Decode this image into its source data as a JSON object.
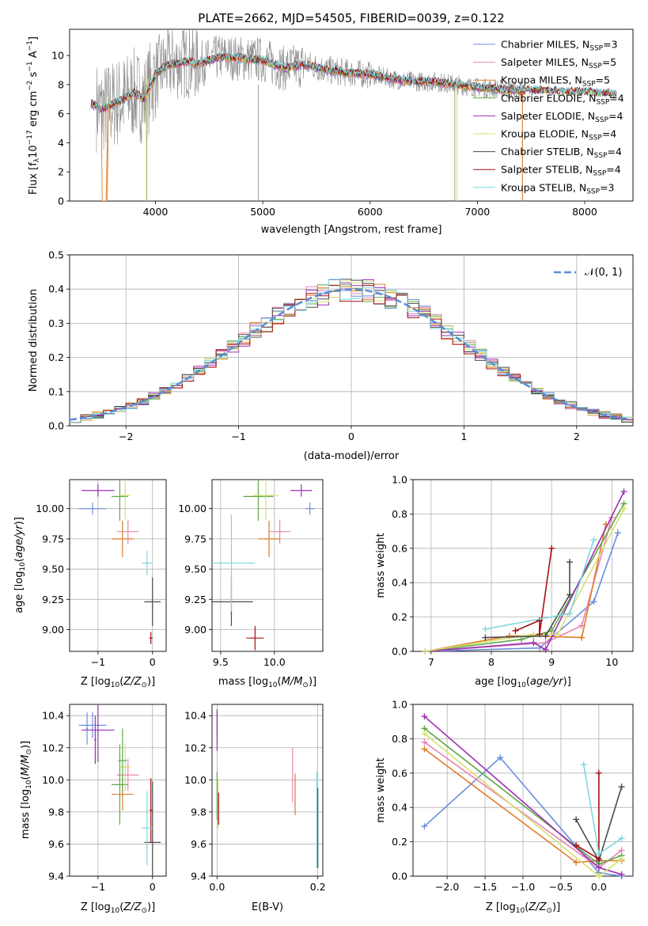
{
  "figure": {
    "title": "PLATE=2662, MJD=54505, FIBERID=0039, z=0.122"
  },
  "colors": {
    "chabrier_miles": "#6a8fdc",
    "salpeter_miles": "#e985b6",
    "kroupa_miles": "#e07c26",
    "chabrier_elodie": "#5fa84a",
    "salpeter_elodie": "#9b2fb3",
    "kroupa_elodie": "#d6e06c",
    "chabrier_stelib": "#4a4a4a",
    "salpeter_stelib": "#a61010",
    "kroupa_stelib": "#7fd8dc",
    "grid": "#b0b0b0",
    "normal_curve": "#5b8bd6"
  },
  "chart_data": [
    {
      "id": "spectrum",
      "type": "line",
      "xlabel": "wavelength [Angstrom, rest frame]",
      "ylabel": "Flux [f",
      "xlim": [
        3200,
        8450
      ],
      "ylim": [
        0,
        11.8
      ],
      "xticks": [
        4000,
        5000,
        6000,
        7000,
        8000
      ],
      "yticks": [
        0,
        2,
        4,
        6,
        8,
        10
      ],
      "legend": [
        {
          "label": "Chabrier MILES, N",
          "nssp": "3",
          "color": "chabrier_miles"
        },
        {
          "label": "Salpeter MILES, N",
          "nssp": "5",
          "color": "salpeter_miles"
        },
        {
          "label": "Kroupa MILES, N",
          "nssp": "5",
          "color": "kroupa_miles"
        },
        {
          "label": "Chabrier ELODIE, N",
          "nssp": "4",
          "color": "chabrier_elodie"
        },
        {
          "label": "Salpeter ELODIE, N",
          "nssp": "4",
          "color": "salpeter_elodie"
        },
        {
          "label": "Kroupa ELODIE, N",
          "nssp": "4",
          "color": "kroupa_elodie"
        },
        {
          "label": "Chabrier STELIB, N",
          "nssp": "4",
          "color": "chabrier_stelib"
        },
        {
          "label": "Salpeter STELIB, N",
          "nssp": "4",
          "color": "salpeter_stelib"
        },
        {
          "label": "Kroupa STELIB, N",
          "nssp": "3",
          "color": "kroupa_stelib"
        }
      ],
      "continuum": [
        [
          3400,
          6.7
        ],
        [
          3500,
          6.3
        ],
        [
          3650,
          6.8
        ],
        [
          3800,
          7.4
        ],
        [
          3900,
          7.0
        ],
        [
          4000,
          8.7
        ],
        [
          4100,
          9.3
        ],
        [
          4300,
          9.6
        ],
        [
          4400,
          9.4
        ],
        [
          4600,
          9.9
        ],
        [
          4800,
          9.8
        ],
        [
          5000,
          9.7
        ],
        [
          5200,
          9.1
        ],
        [
          5400,
          9.4
        ],
        [
          5600,
          9.0
        ],
        [
          5800,
          8.8
        ],
        [
          6000,
          8.7
        ],
        [
          6200,
          8.4
        ],
        [
          6400,
          8.2
        ],
        [
          6600,
          8.2
        ],
        [
          6800,
          8.0
        ],
        [
          7000,
          7.8
        ],
        [
          7200,
          7.7
        ],
        [
          7400,
          7.6
        ],
        [
          7600,
          7.6
        ],
        [
          7800,
          7.5
        ],
        [
          8000,
          7.5
        ],
        [
          8200,
          7.4
        ],
        [
          8300,
          7.3
        ]
      ]
    },
    {
      "id": "residuals",
      "type": "line",
      "xlabel": "(data-model)/error",
      "ylabel": "Normed distribution",
      "xlim": [
        -2.5,
        2.5
      ],
      "ylim": [
        0,
        0.5
      ],
      "xticks": [
        -2,
        -1,
        0,
        1,
        2
      ],
      "yticks": [
        0.0,
        0.1,
        0.2,
        0.3,
        0.4,
        0.5
      ],
      "legend": "𝒩(0, 1)",
      "bin_width": 0.1
    },
    {
      "id": "z_age",
      "type": "scatter",
      "xlabel": "Z [log",
      "ylabel": "age  [log",
      "xlim": [
        -1.52,
        0.25
      ],
      "ylim": [
        8.82,
        10.24
      ],
      "xticks": [
        -1,
        0
      ],
      "yticks": [
        9.0,
        9.25,
        9.5,
        9.75,
        10.0
      ],
      "points": [
        {
          "s": "chabrier_miles",
          "x": -1.1,
          "xe": 0.25,
          "y": 10.0,
          "ye": 0.05
        },
        {
          "s": "salpeter_miles",
          "x": -0.45,
          "xe": 0.2,
          "y": 9.81,
          "ye": 0.1
        },
        {
          "s": "kroupa_miles",
          "x": -0.55,
          "xe": 0.2,
          "y": 9.75,
          "ye": 0.15
        },
        {
          "s": "chabrier_elodie",
          "x": -0.6,
          "xe": 0.15,
          "y": 10.1,
          "ye": 0.2
        },
        {
          "s": "salpeter_elodie",
          "x": -1.0,
          "xe": 0.3,
          "y": 10.15,
          "ye": 0.05
        },
        {
          "s": "kroupa_elodie",
          "x": -0.5,
          "xe": 0.1,
          "y": 10.11,
          "ye": 0.2
        },
        {
          "s": "chabrier_stelib",
          "x": 0.0,
          "xe": 0.15,
          "y": 9.23,
          "ye": 0.2
        },
        {
          "s": "salpeter_stelib",
          "x": -0.03,
          "xe": 0.03,
          "y": 8.93,
          "ye": 0.05
        },
        {
          "s": "kroupa_stelib",
          "x": -0.1,
          "xe": 0.1,
          "y": 9.55,
          "ye": 0.1
        }
      ]
    },
    {
      "id": "mass_age",
      "type": "scatter",
      "xlabel": "mass [log",
      "ylabel": "",
      "xlim": [
        9.42,
        10.45
      ],
      "ylim": [
        8.82,
        10.24
      ],
      "xticks": [
        9.5,
        10.0
      ],
      "yticks": [
        9.0,
        9.25,
        9.5,
        9.75,
        10.0
      ],
      "points": [
        {
          "s": "chabrier_miles",
          "x": 10.33,
          "xe": 0.04,
          "y": 10.0,
          "ye": 0.05
        },
        {
          "s": "salpeter_miles",
          "x": 10.05,
          "xe": 0.1,
          "y": 9.81,
          "ye": 0.1
        },
        {
          "s": "kroupa_miles",
          "x": 9.95,
          "xe": 0.1,
          "y": 9.75,
          "ye": 0.15
        },
        {
          "s": "chabrier_elodie",
          "x": 9.85,
          "xe": 0.14,
          "y": 10.1,
          "ye": 0.2
        },
        {
          "s": "salpeter_elodie",
          "x": 10.25,
          "xe": 0.1,
          "y": 10.15,
          "ye": 0.05
        },
        {
          "s": "kroupa_elodie",
          "x": 9.92,
          "xe": 0.12,
          "y": 10.11,
          "ye": 0.2
        },
        {
          "s": "chabrier_stelib",
          "x": 9.6,
          "xe": 0.2,
          "y": 9.23,
          "ye": 0.2
        },
        {
          "s": "salpeter_stelib",
          "x": 9.82,
          "xe": 0.08,
          "y": 8.93,
          "ye": 0.1
        },
        {
          "s": "kroupa_stelib",
          "x": 9.6,
          "xe": 0.22,
          "y": 9.55,
          "ye": 0.4
        }
      ]
    },
    {
      "id": "age_weight",
      "type": "line",
      "xlabel": "age  [log",
      "ylabel": "mass weight",
      "xlim": [
        6.7,
        10.35
      ],
      "ylim": [
        0,
        1.0
      ],
      "xticks": [
        7,
        8,
        9,
        10
      ],
      "yticks": [
        0.0,
        0.2,
        0.4,
        0.6,
        0.8,
        1.0
      ],
      "series": [
        {
          "s": "chabrier_miles",
          "x": [
            6.9,
            8.8,
            9.7,
            10.1
          ],
          "y": [
            0.0,
            0.02,
            0.29,
            0.69
          ]
        },
        {
          "s": "salpeter_miles",
          "x": [
            6.9,
            8.9,
            9.5,
            10.0
          ],
          "y": [
            0.0,
            0.05,
            0.15,
            0.78
          ]
        },
        {
          "s": "kroupa_miles",
          "x": [
            6.9,
            8.3,
            8.7,
            9.5,
            9.9
          ],
          "y": [
            0.0,
            0.09,
            0.09,
            0.08,
            0.74
          ]
        },
        {
          "s": "chabrier_elodie",
          "x": [
            6.9,
            8.5,
            9.0,
            10.2
          ],
          "y": [
            0.0,
            0.07,
            0.12,
            0.86
          ]
        },
        {
          "s": "salpeter_elodie",
          "x": [
            6.9,
            8.7,
            8.9,
            10.2
          ],
          "y": [
            0.0,
            0.05,
            0.01,
            0.93
          ]
        },
        {
          "s": "kroupa_elodie",
          "x": [
            6.9,
            8.7,
            9.1,
            10.2
          ],
          "y": [
            0.0,
            0.1,
            0.1,
            0.83
          ]
        },
        {
          "s": "chabrier_stelib",
          "x": [
            7.9,
            8.9,
            9.3,
            9.3
          ],
          "y": [
            0.08,
            0.09,
            0.33,
            0.52
          ]
        },
        {
          "s": "salpeter_stelib",
          "x": [
            8.4,
            8.8,
            8.8,
            9.0
          ],
          "y": [
            0.12,
            0.18,
            0.1,
            0.6
          ]
        },
        {
          "s": "kroupa_stelib",
          "x": [
            7.9,
            9.3,
            9.7
          ],
          "y": [
            0.13,
            0.22,
            0.65
          ]
        }
      ]
    },
    {
      "id": "z_mass",
      "type": "scatter",
      "xlabel": "Z [log",
      "ylabel": "mass [log",
      "xlim": [
        -1.52,
        0.25
      ],
      "ylim": [
        9.4,
        10.47
      ],
      "xticks": [
        -1,
        0
      ],
      "yticks": [
        9.4,
        9.6,
        9.8,
        10.0,
        10.2,
        10.4
      ],
      "points": [
        {
          "s": "chabrier_miles",
          "x": -1.1,
          "xe": 0.25,
          "y": 10.34,
          "ye": 0.08
        },
        {
          "s": "salpeter_miles",
          "x": -0.45,
          "xe": 0.2,
          "y": 10.03,
          "ye": 0.1
        },
        {
          "s": "kroupa_miles",
          "x": -0.55,
          "xe": 0.2,
          "y": 9.91,
          "ye": 0.1
        },
        {
          "s": "chabrier_elodie",
          "x": -0.6,
          "xe": 0.15,
          "y": 9.97,
          "ye": 0.25
        },
        {
          "s": "salpeter_elodie",
          "x": -1.0,
          "xe": 0.3,
          "y": 10.31,
          "ye": 0.2
        },
        {
          "s": "kroupa_elodie",
          "x": -0.5,
          "xe": 0.1,
          "y": 10.08,
          "ye": 0.15
        },
        {
          "s": "chabrier_stelib",
          "x": 0.0,
          "xe": 0.15,
          "y": 9.61,
          "ye": 0.38
        },
        {
          "s": "salpeter_stelib",
          "x": -0.03,
          "xe": 0.03,
          "y": 9.81,
          "ye": 0.2
        },
        {
          "s": "kroupa_stelib",
          "x": -0.1,
          "xe": 0.1,
          "y": 9.7,
          "ye": 0.23
        },
        {
          "s": "chabrier_miles",
          "x": -1.2,
          "xe": 0.02,
          "y": 10.32,
          "ye": 0.1
        },
        {
          "s": "chabrier_elodie",
          "x": -0.55,
          "xe": 0.08,
          "y": 10.12,
          "ye": 0.2
        },
        {
          "s": "salpeter_elodie",
          "x": -1.05,
          "xe": 0.02,
          "y": 10.25,
          "ye": 0.15
        }
      ]
    },
    {
      "id": "ebv_mass",
      "type": "scatter",
      "xlabel": "E(B-V)",
      "ylabel": "",
      "xlim": [
        -0.01,
        0.21
      ],
      "ylim": [
        9.4,
        10.47
      ],
      "xticks": [
        0.0,
        0.2
      ],
      "yticks": [
        9.4,
        9.6,
        9.8,
        10.0,
        10.2,
        10.4
      ],
      "points": [
        {
          "s": "chabrier_miles",
          "x": 0.0,
          "y": 10.34,
          "ye": 0.08
        },
        {
          "s": "salpeter_miles",
          "x": 0.15,
          "y": 10.03,
          "ye": 0.17
        },
        {
          "s": "kroupa_miles",
          "x": 0.155,
          "y": 9.91,
          "ye": 0.13
        },
        {
          "s": "chabrier_elodie",
          "x": 0.0,
          "y": 9.9,
          "ye": 0.15
        },
        {
          "s": "salpeter_elodie",
          "x": 0.0,
          "y": 10.31,
          "ye": 0.13
        },
        {
          "s": "kroupa_elodie",
          "x": 0.002,
          "y": 9.85,
          "ye": 0.15
        },
        {
          "s": "chabrier_stelib",
          "x": 0.2,
          "y": 9.7,
          "ye": 0.25
        },
        {
          "s": "salpeter_stelib",
          "x": 0.003,
          "y": 9.82,
          "ye": 0.1
        },
        {
          "s": "kroupa_stelib",
          "x": 0.198,
          "y": 9.75,
          "ye": 0.3
        }
      ]
    },
    {
      "id": "z_weight",
      "type": "line",
      "xlabel": "Z [log",
      "ylabel": "mass weight",
      "xlim": [
        -2.45,
        0.45
      ],
      "ylim": [
        0,
        1.0
      ],
      "xticks": [
        -2.0,
        -1.5,
        -1.0,
        -0.5,
        0.0
      ],
      "yticks": [
        0.0,
        0.2,
        0.4,
        0.6,
        0.8,
        1.0
      ],
      "series": [
        {
          "s": "chabrier_miles",
          "x": [
            -2.3,
            -1.3,
            0.0,
            0.3
          ],
          "y": [
            0.29,
            0.69,
            0.02,
            0.0
          ]
        },
        {
          "s": "salpeter_miles",
          "x": [
            -2.3,
            0.0,
            0.3
          ],
          "y": [
            0.78,
            0.05,
            0.15
          ]
        },
        {
          "s": "kroupa_miles",
          "x": [
            -2.3,
            -0.3,
            0.0,
            0.3
          ],
          "y": [
            0.74,
            0.08,
            0.09,
            0.09
          ]
        },
        {
          "s": "chabrier_elodie",
          "x": [
            -2.3,
            0.0,
            0.3
          ],
          "y": [
            0.86,
            0.07,
            0.12
          ]
        },
        {
          "s": "salpeter_elodie",
          "x": [
            -2.3,
            0.0,
            0.3
          ],
          "y": [
            0.93,
            0.05,
            0.01
          ]
        },
        {
          "s": "kroupa_elodie",
          "x": [
            -2.3,
            0.0,
            0.3
          ],
          "y": [
            0.83,
            0.0,
            0.1
          ]
        },
        {
          "s": "chabrier_stelib",
          "x": [
            -0.3,
            0.0,
            0.3
          ],
          "y": [
            0.33,
            0.09,
            0.52
          ]
        },
        {
          "s": "salpeter_stelib",
          "x": [
            -0.3,
            0.0,
            0.0
          ],
          "y": [
            0.18,
            0.1,
            0.6
          ]
        },
        {
          "s": "kroupa_stelib",
          "x": [
            -0.2,
            0.0,
            0.3
          ],
          "y": [
            0.65,
            0.13,
            0.22
          ]
        }
      ]
    }
  ]
}
